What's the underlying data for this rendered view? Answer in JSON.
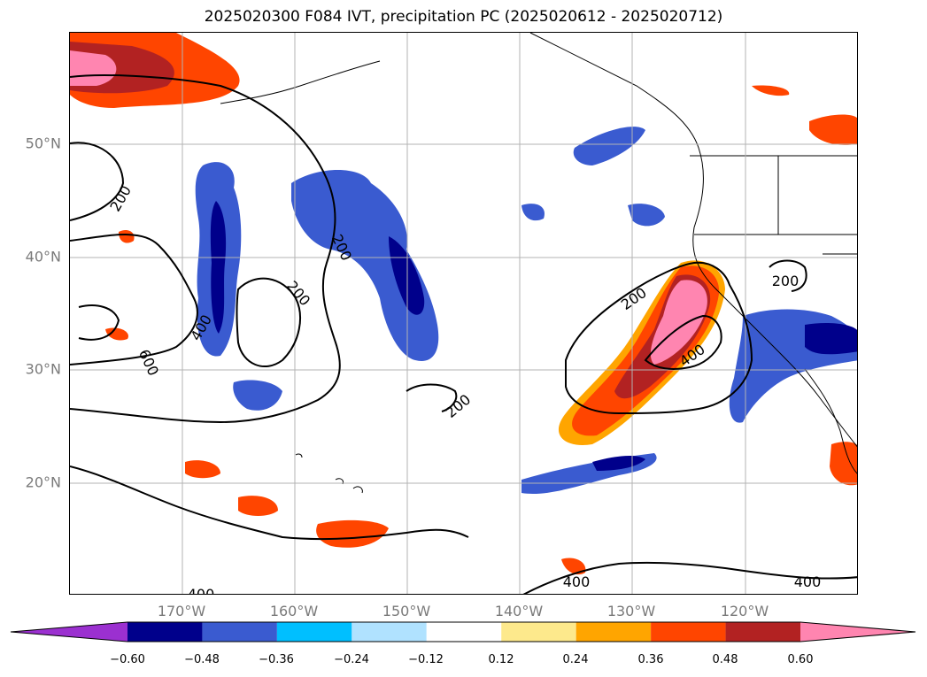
{
  "title": "2025020300 F084 IVT, precipitation PC (2025020612 - 2025020712)",
  "latitude_labels": [
    "50°N",
    "40°N",
    "30°N",
    "20°N"
  ],
  "longitude_labels": [
    "170°W",
    "160°W",
    "150°W",
    "140°W",
    "130°W",
    "120°W"
  ],
  "contour_labels": [
    "200",
    "200",
    "200",
    "200",
    "200",
    "200",
    "400",
    "400",
    "400",
    "400",
    "400",
    "600"
  ],
  "colorbar": {
    "ticks": [
      "−0.60",
      "−0.48",
      "−0.36",
      "−0.24",
      "−0.12",
      "0.12",
      "0.24",
      "0.36",
      "0.48",
      "0.60"
    ],
    "colors": [
      "#9b30d0",
      "#00008b",
      "#3a5bd0",
      "#00bfff",
      "#b0e2ff",
      "#ffffff",
      "#fde98c",
      "#ffa500",
      "#ff4500",
      "#b22222",
      "#ff85b0"
    ]
  }
}
